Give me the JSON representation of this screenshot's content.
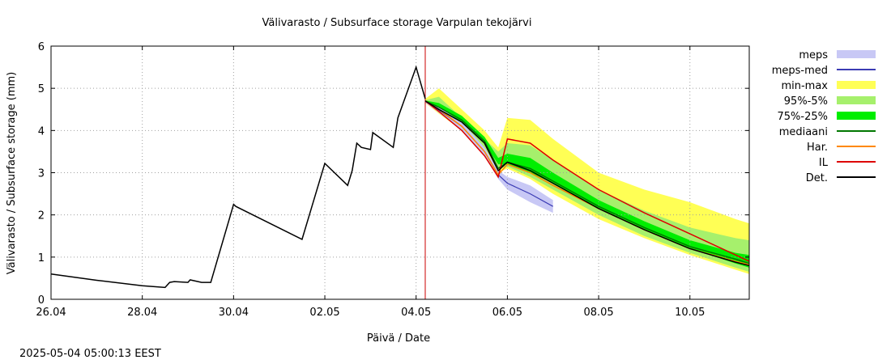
{
  "timestamp": "2025-05-04 05:00:13 EEST",
  "chart_data": {
    "type": "area",
    "title": "Välivarasto / Subsurface storage  Varpulan tekojärvi",
    "xlabel": "Päivä / Date",
    "ylabel": "Välivarasto / Subsurface storage (mm)",
    "xlim": [
      0,
      15.3
    ],
    "ylim": [
      0,
      6
    ],
    "x_unit": "days since 26.04",
    "grid": true,
    "legend_position": "right",
    "x_ticks": [
      {
        "x": 0,
        "label": "26.04"
      },
      {
        "x": 2,
        "label": "28.04"
      },
      {
        "x": 4,
        "label": "30.04"
      },
      {
        "x": 6,
        "label": "02.05"
      },
      {
        "x": 8,
        "label": "04.05"
      },
      {
        "x": 10,
        "label": "06.05"
      },
      {
        "x": 12,
        "label": "08.05"
      },
      {
        "x": 14,
        "label": "10.05"
      }
    ],
    "y_ticks": [
      0,
      1,
      2,
      3,
      4,
      5,
      6
    ],
    "forecast_start_x": 8.2,
    "colors": {
      "meps": "#c8c8f5",
      "meps_med": "#3b3bb4",
      "minmax": "#ffff55",
      "p95_5": "#a6f06c",
      "p75_25": "#00ee00",
      "median": "#007700",
      "har": "#ff8800",
      "il": "#dd0000",
      "det": "#000000",
      "vline": "#cc0000",
      "grid": "#a0a0a0"
    },
    "legend": [
      {
        "key": "meps",
        "label": "meps",
        "kind": "band"
      },
      {
        "key": "meps_med",
        "label": "meps-med",
        "kind": "line"
      },
      {
        "key": "minmax",
        "label": "min-max",
        "kind": "band"
      },
      {
        "key": "p95_5",
        "label": "95%-5%",
        "kind": "band"
      },
      {
        "key": "p75_25",
        "label": "75%-25%",
        "kind": "band"
      },
      {
        "key": "median",
        "label": "mediaani",
        "kind": "line"
      },
      {
        "key": "har",
        "label": "Har.",
        "kind": "line"
      },
      {
        "key": "il",
        "label": "IL",
        "kind": "line"
      },
      {
        "key": "det",
        "label": "Det.",
        "kind": "line"
      }
    ],
    "observed": {
      "name": "Det.",
      "x": [
        0,
        1,
        2,
        2.5,
        2.6,
        2.7,
        3.0,
        3.05,
        3.3,
        3.5,
        4.0,
        4.05,
        5.5,
        6.0,
        6.5,
        6.6,
        6.7,
        6.8,
        7.0,
        7.05,
        7.5,
        7.6,
        8.0,
        8.2
      ],
      "y": [
        0.6,
        0.45,
        0.32,
        0.28,
        0.4,
        0.42,
        0.4,
        0.46,
        0.4,
        0.4,
        2.25,
        2.2,
        1.42,
        3.22,
        2.7,
        3.05,
        3.7,
        3.6,
        3.55,
        3.95,
        3.6,
        4.3,
        5.5,
        4.75
      ]
    },
    "forecast_x": [
      8.2,
      8.5,
      9.0,
      9.5,
      9.8,
      10.0,
      10.5,
      11.0,
      12.0,
      13.0,
      14.0,
      15.0,
      15.3
    ],
    "series": [
      {
        "name": "min",
        "values": [
          4.65,
          4.4,
          4.0,
          3.5,
          3.0,
          3.1,
          2.85,
          2.5,
          1.9,
          1.45,
          1.05,
          0.7,
          0.6
        ]
      },
      {
        "name": "max",
        "values": [
          4.75,
          5.0,
          4.5,
          4.0,
          3.6,
          4.3,
          4.25,
          3.8,
          3.0,
          2.6,
          2.3,
          1.9,
          1.8
        ]
      },
      {
        "name": "p5",
        "values": [
          4.68,
          4.45,
          4.05,
          3.6,
          3.1,
          3.15,
          2.9,
          2.6,
          2.0,
          1.5,
          1.1,
          0.75,
          0.65
        ]
      },
      {
        "name": "p95",
        "values": [
          4.72,
          4.8,
          4.3,
          3.8,
          3.5,
          3.7,
          3.65,
          3.3,
          2.6,
          2.1,
          1.7,
          1.45,
          1.4
        ]
      },
      {
        "name": "p25",
        "values": [
          4.69,
          4.55,
          4.2,
          3.7,
          3.2,
          3.2,
          3.0,
          2.75,
          2.15,
          1.65,
          1.2,
          0.85,
          0.75
        ]
      },
      {
        "name": "p75",
        "values": [
          4.71,
          4.65,
          4.35,
          3.85,
          3.35,
          3.45,
          3.35,
          3.0,
          2.35,
          1.85,
          1.4,
          1.1,
          1.05
        ]
      },
      {
        "name": "meps_lo",
        "values": [
          4.66,
          4.42,
          4.0,
          3.4,
          2.85,
          2.6,
          2.3,
          2.05,
          null,
          null,
          null,
          null,
          null
        ]
      },
      {
        "name": "meps_hi",
        "values": [
          4.72,
          4.55,
          4.2,
          3.6,
          3.05,
          2.9,
          2.7,
          2.35,
          null,
          null,
          null,
          null,
          null
        ]
      },
      {
        "name": "meps_med",
        "values": [
          4.69,
          4.48,
          4.1,
          3.5,
          2.95,
          2.75,
          2.5,
          2.2,
          null,
          null,
          null,
          null,
          null
        ]
      },
      {
        "name": "median",
        "values": [
          4.7,
          4.55,
          4.25,
          3.75,
          3.1,
          3.25,
          3.1,
          2.8,
          2.2,
          1.7,
          1.25,
          0.95,
          0.85
        ]
      },
      {
        "name": "det_forecast",
        "values": [
          4.7,
          4.5,
          4.2,
          3.7,
          3.05,
          3.25,
          3.05,
          2.75,
          2.15,
          1.65,
          1.2,
          0.88,
          0.8
        ]
      },
      {
        "name": "har",
        "values": [
          4.7,
          4.5,
          4.1,
          3.5,
          2.95,
          3.2,
          3.0,
          2.7,
          2.15,
          1.65,
          1.2,
          0.9,
          0.82
        ]
      },
      {
        "name": "il",
        "values": [
          4.7,
          4.45,
          4.0,
          3.4,
          2.9,
          3.8,
          3.7,
          3.3,
          2.6,
          2.05,
          1.55,
          1.05,
          0.9
        ]
      }
    ]
  }
}
